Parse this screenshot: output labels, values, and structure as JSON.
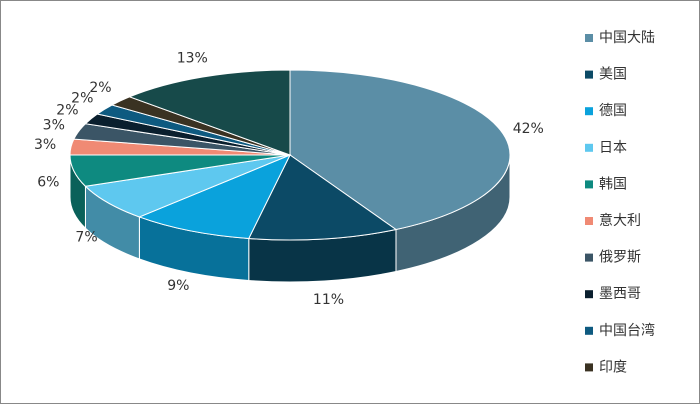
{
  "chart_data": {
    "type": "pie3d",
    "categories": [
      "中国大陆",
      "美国",
      "德国",
      "日本",
      "韩国",
      "意大利",
      "俄罗斯",
      "墨西哥",
      "中国台湾",
      "印度",
      null
    ],
    "values": [
      42,
      11,
      9,
      7,
      6,
      3,
      3,
      2,
      2,
      2,
      13
    ],
    "value_labels": [
      "42%",
      "11%",
      "9%",
      "7%",
      "6%",
      "3%",
      "3%",
      "2%",
      "2%",
      "2%",
      "13%"
    ],
    "colors": [
      "#5b8ea6",
      "#0c4a66",
      "#0aa2dc",
      "#5ec8ef",
      "#0e8a80",
      "#f08a74",
      "#3b5566",
      "#0a1f2e",
      "#0e5a80",
      "#3a3222",
      "#174a4a"
    ],
    "legend": "right"
  }
}
